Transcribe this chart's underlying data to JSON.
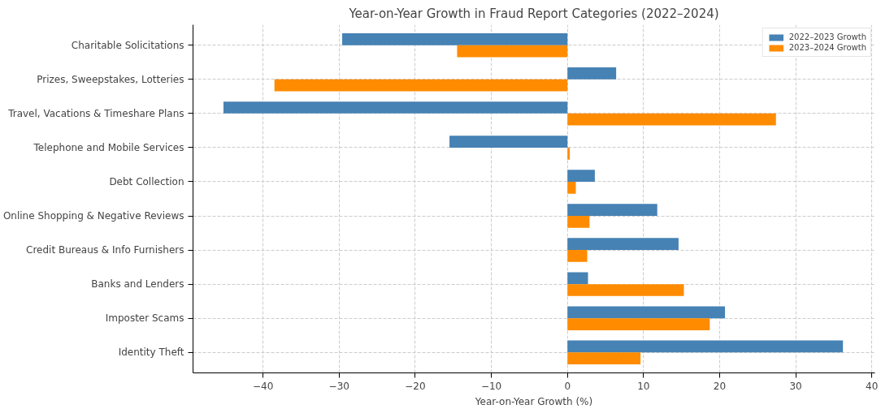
{
  "chart_data": {
    "type": "bar",
    "orientation": "horizontal",
    "title": "Year-on-Year Growth in Fraud Report Categories (2022–2024)",
    "xlabel": "Year-on-Year Growth (%)",
    "categories": [
      "Charitable Solicitations",
      "Prizes, Sweepstakes, Lotteries",
      "Travel, Vacations & Timeshare Plans",
      "Telephone and Mobile Services",
      "Debt Collection",
      "Online Shopping & Negative Reviews",
      "Credit Bureaus & Info Furnishers",
      "Banks and Lenders",
      "Imposter Scams",
      "Identity Theft"
    ],
    "series": [
      {
        "name": "2022–2023 Growth",
        "color": "#4682b4",
        "values": [
          -29.6,
          6.4,
          -45.2,
          -15.5,
          3.6,
          11.8,
          14.6,
          2.7,
          20.7,
          36.2
        ]
      },
      {
        "name": "2023–2024 Growth",
        "color": "#ff8c00",
        "values": [
          -14.5,
          -38.5,
          27.4,
          0.3,
          1.1,
          2.9,
          2.6,
          15.3,
          18.7,
          9.6
        ]
      }
    ],
    "xlim": [
      -49.2,
      40.4
    ],
    "xticks": [
      {
        "value": -40,
        "label": "−40"
      },
      {
        "value": -30,
        "label": "−30"
      },
      {
        "value": -20,
        "label": "−20"
      },
      {
        "value": -10,
        "label": "−10"
      },
      0,
      10,
      20,
      30,
      40
    ],
    "grid": true,
    "legend": "top right"
  }
}
